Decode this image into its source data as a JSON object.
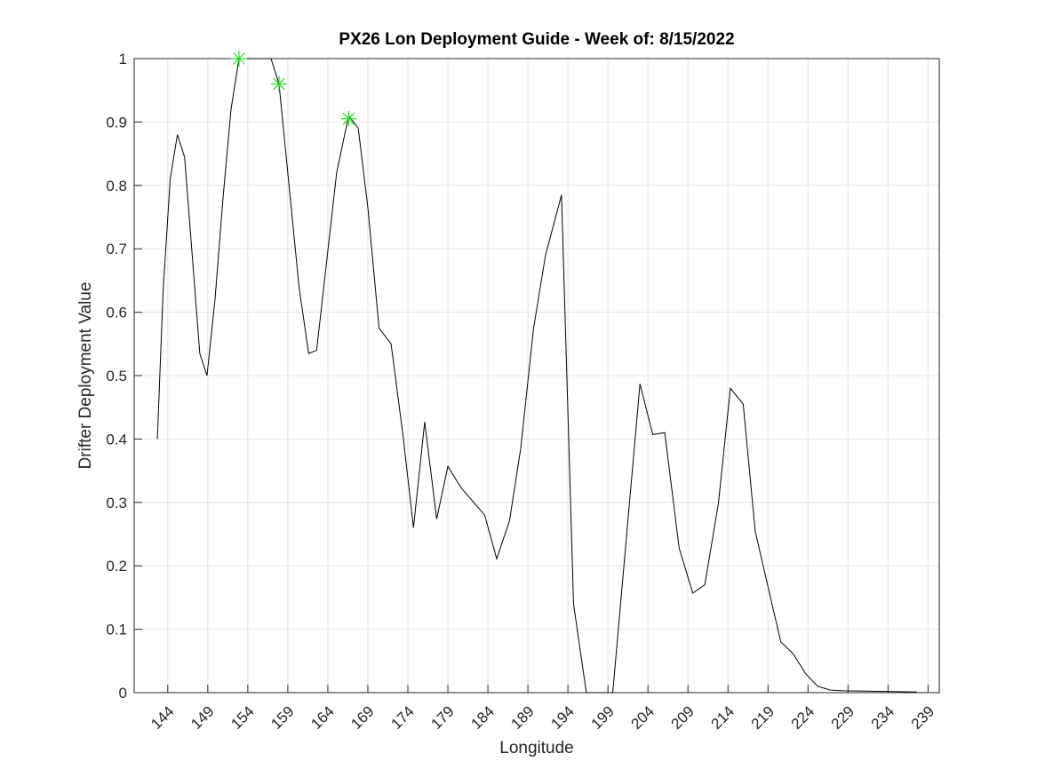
{
  "chart_data": {
    "type": "line",
    "title": "PX26 Lon Deployment Guide - Week of: 8/15/2022",
    "x_label": "Longitude",
    "y_label": "Drifter Deployment Value",
    "xlim": [
      139.8,
      240.4
    ],
    "ylim": [
      0,
      1
    ],
    "xticks": [
      144,
      149,
      154,
      159,
      164,
      169,
      174,
      179,
      184,
      189,
      194,
      199,
      204,
      209,
      214,
      219,
      224,
      229,
      234,
      239
    ],
    "yticks": [
      0,
      0.1,
      0.2,
      0.3,
      0.4,
      0.5,
      0.6,
      0.7,
      0.8,
      0.9,
      1
    ],
    "grid": true,
    "series": [
      {
        "color": "#000000",
        "marker": "none",
        "x": [
          142.7,
          143.4,
          144.3,
          145.2,
          146.1,
          148.0,
          148.9,
          149.9,
          150.9,
          151.9,
          152.9,
          156.9,
          157.9,
          160.4,
          161.6,
          162.6,
          165.1,
          166.6,
          167.8,
          169.0,
          170.4,
          171.9,
          173.4,
          174.7,
          176.1,
          177.6,
          179.0,
          180.6,
          183.6,
          185.1,
          186.7,
          188.1,
          189.7,
          191.2,
          193.2,
          194.7,
          196.3,
          199.6,
          203.0,
          204.6,
          206.1,
          207.9,
          209.6,
          211.1,
          212.8,
          214.3,
          215.9,
          217.4,
          219.0,
          220.6,
          222.1,
          223.7,
          225.2,
          226.8,
          228.4,
          237.6
        ],
        "values": [
          0.4,
          0.63,
          0.81,
          0.88,
          0.845,
          0.535,
          0.5,
          0.62,
          0.78,
          0.92,
          1.0,
          1.0,
          0.96,
          0.64,
          0.535,
          0.54,
          0.82,
          0.91,
          0.89,
          0.765,
          0.575,
          0.55,
          0.405,
          0.26,
          0.427,
          0.274,
          0.357,
          0.324,
          0.28,
          0.211,
          0.271,
          0.385,
          0.574,
          0.69,
          0.785,
          0.14,
          0.0,
          0.0,
          0.487,
          0.407,
          0.41,
          0.228,
          0.157,
          0.17,
          0.298,
          0.48,
          0.455,
          0.255,
          0.167,
          0.08,
          0.062,
          0.03,
          0.01,
          0.004,
          0.003,
          0.001
        ]
      },
      {
        "color": "#22dd22",
        "marker": "*",
        "x": [
          152.9,
          157.9,
          166.6
        ],
        "values": [
          1.0,
          0.96,
          0.905
        ]
      }
    ]
  }
}
